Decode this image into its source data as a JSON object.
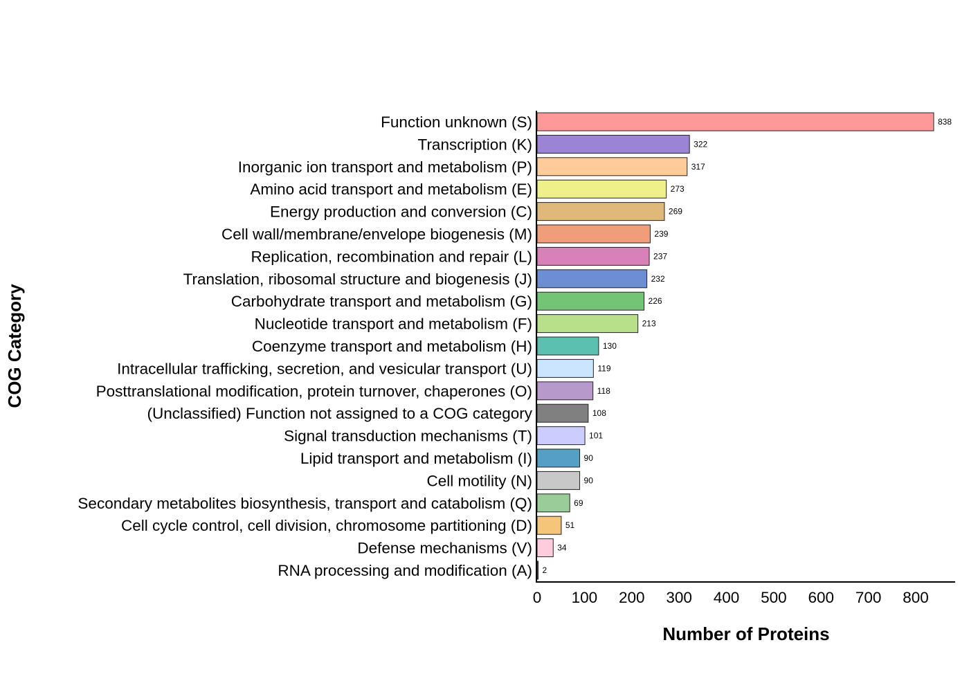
{
  "chart_data": {
    "type": "bar",
    "orientation": "horizontal",
    "title": "",
    "xlabel": "Number of Proteins",
    "ylabel": "COG Category",
    "xlim": [
      0,
      880
    ],
    "xticks": [
      0,
      100,
      200,
      300,
      400,
      500,
      600,
      700,
      800
    ],
    "grid": false,
    "categories": [
      "Function unknown (S)",
      "Transcription (K)",
      "Inorganic ion transport and metabolism (P)",
      "Amino acid transport and metabolism (E)",
      "Energy production and conversion (C)",
      "Cell wall/membrane/envelope biogenesis (M)",
      "Replication, recombination and repair (L)",
      "Translation, ribosomal structure and biogenesis (J)",
      "Carbohydrate transport and metabolism (G)",
      "Nucleotide transport and metabolism (F)",
      "Coenzyme transport and metabolism (H)",
      "Intracellular trafficking, secretion, and vesicular transport (U)",
      "Posttranslational modification, protein turnover, chaperones (O)",
      "(Unclassified) Function not assigned to a COG category",
      "Signal transduction mechanisms (T)",
      "Lipid transport and metabolism (I)",
      "Cell motility (N)",
      "Secondary metabolites biosynthesis, transport and catabolism (Q)",
      "Cell cycle control, cell division, chromosome partitioning (D)",
      "Defense mechanisms (V)",
      "RNA processing and modification (A)"
    ],
    "values": [
      838,
      322,
      317,
      273,
      269,
      239,
      237,
      232,
      226,
      213,
      130,
      119,
      118,
      108,
      101,
      90,
      90,
      69,
      51,
      34,
      2
    ],
    "colors": [
      "#ff9999",
      "#9b83d6",
      "#ffcc99",
      "#f0f08a",
      "#e0b87a",
      "#f09e7a",
      "#d880b8",
      "#6b8fd2",
      "#74c476",
      "#b8e08a",
      "#5cc0b0",
      "#cce5ff",
      "#b899cc",
      "#808080",
      "#ccccff",
      "#54a0c4",
      "#c8c8c8",
      "#99cc99",
      "#f5c57a",
      "#ffccdd",
      "#7a3a6a"
    ]
  }
}
